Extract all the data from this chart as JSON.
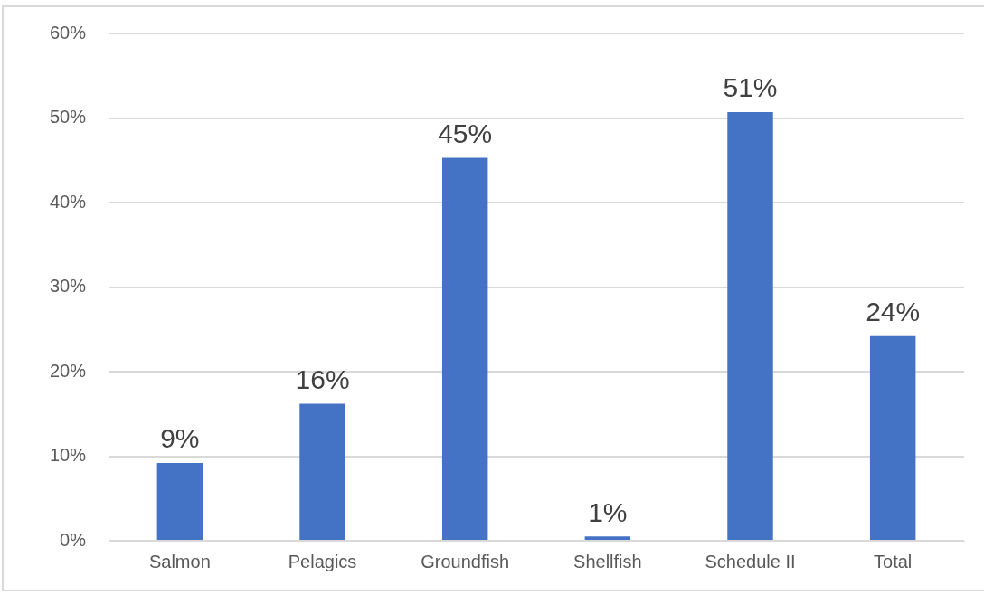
{
  "chart_data": {
    "type": "bar",
    "categories": [
      "Salmon",
      "Pelagics",
      "Groundfish",
      "Shellfish",
      "Schedule II",
      "Total"
    ],
    "values": [
      9.2,
      16.2,
      45.3,
      0.5,
      50.7,
      24.2
    ],
    "value_labels": [
      "9%",
      "16%",
      "45%",
      "1%",
      "51%",
      "24%"
    ],
    "color": "#4472c4",
    "ylim": [
      0,
      60
    ],
    "yticks": [
      {
        "value": 0,
        "label": "0%"
      },
      {
        "value": 10,
        "label": "10%"
      },
      {
        "value": 20,
        "label": "20%"
      },
      {
        "value": 30,
        "label": "30%"
      },
      {
        "value": 40,
        "label": "40%"
      },
      {
        "value": 50,
        "label": "50%"
      },
      {
        "value": 60,
        "label": "60%"
      }
    ],
    "grid": "y",
    "legend": false
  }
}
